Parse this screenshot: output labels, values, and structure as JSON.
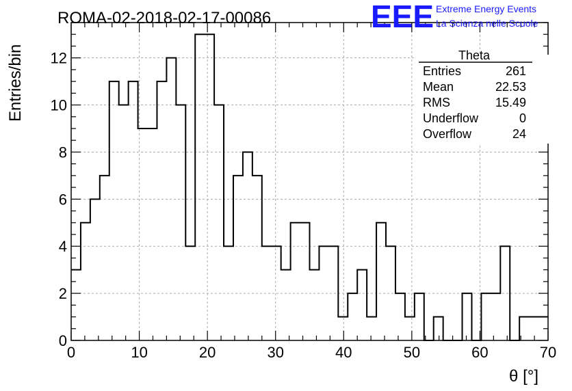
{
  "run_title": "ROMA-02-2018-02-17-00086",
  "logo": {
    "text": "EEE",
    "line1": "Extreme Energy Events",
    "line2": "La Scienza nelle Scuole",
    "color": "#1a1aff"
  },
  "stats": {
    "title": "Theta",
    "rows": [
      {
        "label": "Entries",
        "value": "261"
      },
      {
        "label": "Mean",
        "value": "22.53"
      },
      {
        "label": "RMS",
        "value": "15.49"
      },
      {
        "label": "Underflow",
        "value": "0"
      },
      {
        "label": "Overflow",
        "value": "24"
      }
    ]
  },
  "chart_data": {
    "type": "bar",
    "style": "step-histogram",
    "title": "ROMA-02-2018-02-17-00086",
    "xlabel": "θ [°]",
    "ylabel": "Entries/bin",
    "xlim": [
      0,
      70
    ],
    "ylim": [
      0,
      13.5
    ],
    "grid": true,
    "bin_width": 1.4,
    "bin_start": 0,
    "x_ticks": [
      0,
      10,
      20,
      30,
      40,
      50,
      60,
      70
    ],
    "y_ticks": [
      0,
      2,
      4,
      6,
      8,
      10,
      12
    ],
    "values": [
      3,
      5,
      6,
      7,
      11,
      10,
      11,
      9,
      9,
      11,
      12,
      10,
      4,
      13,
      13,
      10,
      4,
      7,
      8,
      7,
      4,
      4,
      3,
      5,
      5,
      3,
      4,
      4,
      1,
      2,
      3,
      1,
      5,
      4,
      2,
      1,
      2,
      0,
      1,
      0,
      0,
      2,
      0,
      2,
      2,
      4,
      0,
      1,
      1,
      1
    ]
  }
}
